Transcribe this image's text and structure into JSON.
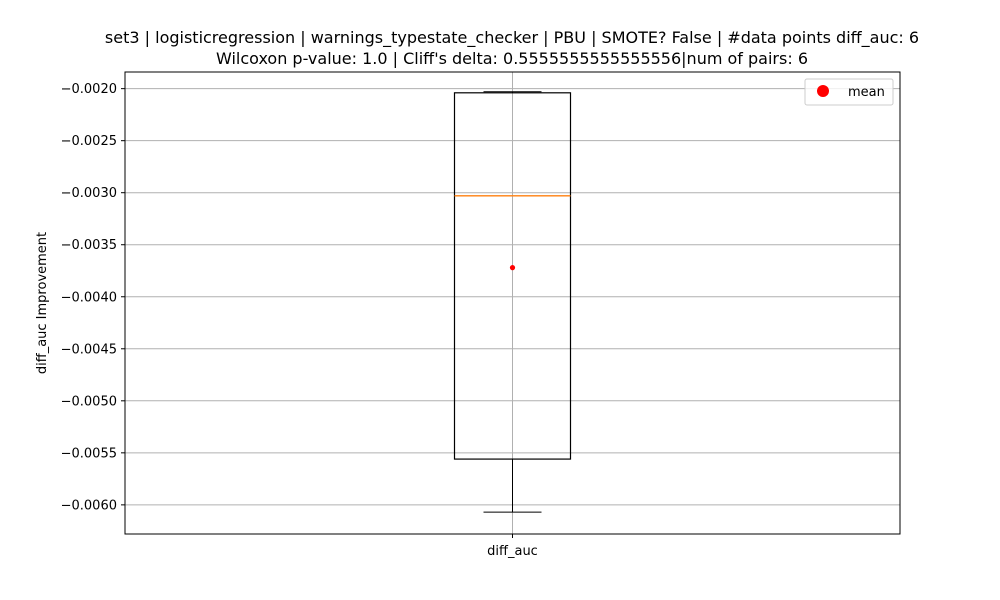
{
  "chart_data": {
    "type": "box",
    "title_line1": "set3 | logisticregression | warnings_typestate_checker | PBU | SMOTE? False | #data points diff_auc: 6",
    "title_line2": "Wilcoxon p-value: 1.0 | Cliff's delta: 0.5555555555555556|num of pairs: 6",
    "xlabel": "",
    "ylabel": "diff_auc Improvement",
    "categories": [
      "diff_auc"
    ],
    "ylim": [
      -0.00628,
      -0.00184
    ],
    "yticks": [
      -0.002,
      -0.0025,
      -0.003,
      -0.0035,
      -0.004,
      -0.0045,
      -0.005,
      -0.0055,
      -0.006
    ],
    "ytick_labels": [
      "−0.0020",
      "−0.0025",
      "−0.0030",
      "−0.0035",
      "−0.0040",
      "−0.0045",
      "−0.0050",
      "−0.0055",
      "−0.0060"
    ],
    "box": {
      "whisker_high": -0.00203,
      "q3": -0.00204,
      "median": -0.00303,
      "mean": -0.00372,
      "q1": -0.00556,
      "whisker_low": -0.00607
    },
    "grid": true,
    "legend": {
      "position": "top-right",
      "entries": [
        {
          "label": "mean",
          "color": "#ff0000",
          "marker": "circle"
        }
      ]
    },
    "colors": {
      "box": "#000000",
      "median": "#ff7f0e",
      "mean": "#ff0000",
      "grid": "#b0b0b0"
    }
  }
}
